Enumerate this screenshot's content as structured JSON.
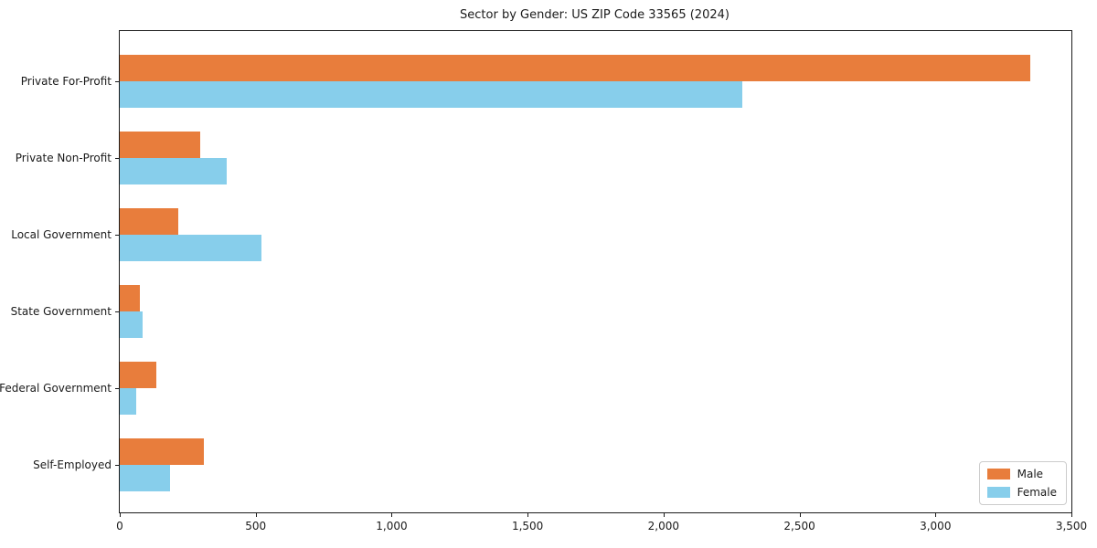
{
  "chart_data": {
    "type": "bar",
    "orientation": "horizontal",
    "title": "Sector by Gender: US ZIP Code 33565 (2024)",
    "categories": [
      "Private For-Profit",
      "Private Non-Profit",
      "Local Government",
      "State Government",
      "Federal Government",
      "Self-Employed"
    ],
    "series": [
      {
        "name": "Male",
        "color": "#E87D3C",
        "values": [
          3350,
          295,
          215,
          75,
          135,
          310
        ]
      },
      {
        "name": "Female",
        "color": "#87CEEB",
        "values": [
          2290,
          395,
          520,
          85,
          60,
          185
        ]
      }
    ],
    "xlabel": "",
    "ylabel": "",
    "xlim": [
      0,
      3500
    ],
    "x_ticks": [
      {
        "value": 0,
        "label": "0"
      },
      {
        "value": 500,
        "label": "500"
      },
      {
        "value": 1000,
        "label": "1,000"
      },
      {
        "value": 1500,
        "label": "1,500"
      },
      {
        "value": 2000,
        "label": "2,000"
      },
      {
        "value": 2500,
        "label": "2,500"
      },
      {
        "value": 3000,
        "label": "3,000"
      },
      {
        "value": 3500,
        "label": "3,500"
      }
    ],
    "grid": false,
    "legend_position": "lower right",
    "frame_color": "#1b1b1b",
    "background_color": "#ffffff"
  }
}
